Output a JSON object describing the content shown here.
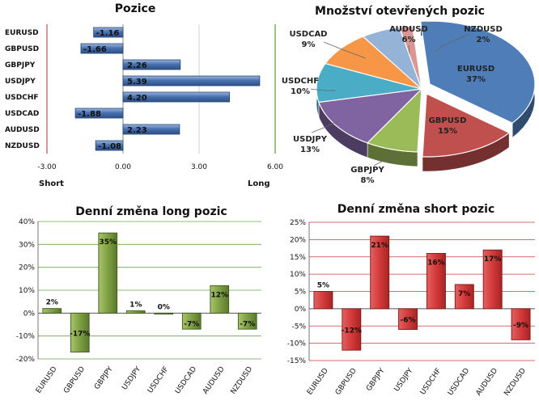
{
  "chart_data": [
    {
      "type": "bar",
      "orientation": "horizontal",
      "title": "Pozice",
      "categories": [
        "EURUSD",
        "GBPUSD",
        "GBPJPY",
        "USDJPY",
        "USDCHF",
        "USDCAD",
        "AUDUSD",
        "NZDUSD"
      ],
      "values": [
        -1.16,
        -1.66,
        2.26,
        5.39,
        4.2,
        -1.88,
        2.23,
        -1.08
      ],
      "value_labels": [
        "-1.16",
        "-1.66",
        "2.26",
        "5.39",
        "4.20",
        "-1.88",
        "2.23",
        "-1.08"
      ],
      "xlim": [
        -3,
        6
      ],
      "xticks": [
        "-3.00",
        "0.00",
        "3.00",
        "6.00"
      ],
      "left_label": "Short",
      "right_label": "Long",
      "bar_color": "#4a72b0",
      "left_line_color": "#c05050",
      "right_line_color": "#5a9a3a"
    },
    {
      "type": "pie",
      "title": "Množství otevřených pozic",
      "slices": [
        {
          "name": "EURUSD",
          "value": 37,
          "label": "37%",
          "color": "#4e7db8"
        },
        {
          "name": "GBPUSD",
          "value": 15,
          "label": "15%",
          "color": "#c0504d"
        },
        {
          "name": "GBPJPY",
          "value": 8,
          "label": "8%",
          "color": "#9bbb59"
        },
        {
          "name": "USDJPY",
          "value": 13,
          "label": "13%",
          "color": "#8064a2"
        },
        {
          "name": "USDCHF",
          "value": 10,
          "label": "10%",
          "color": "#4bacc6"
        },
        {
          "name": "USDCAD",
          "value": 9,
          "label": "9%",
          "color": "#f79646"
        },
        {
          "name": "AUDUSD",
          "value": 6,
          "label": "6%",
          "color": "#95b3d7"
        },
        {
          "name": "NZDUSD",
          "value": 2,
          "label": "2%",
          "color": "#d99694"
        }
      ]
    },
    {
      "type": "bar",
      "title": "Denní změna long pozic",
      "categories": [
        "EURUSD",
        "GBPUSD",
        "GBPJPY",
        "USDJPY",
        "USDCHF",
        "USDCAD",
        "AUDUSD",
        "NZDUSD"
      ],
      "values": [
        2,
        -17,
        35,
        1,
        0,
        -7,
        12,
        -7
      ],
      "value_labels": [
        "2%",
        "-17%",
        "35%",
        "1%",
        "0%",
        "-7%",
        "12%",
        "-7%"
      ],
      "ylim": [
        -20,
        40
      ],
      "yticks": [
        "-20%",
        "-10%",
        "0%",
        "10%",
        "20%",
        "30%",
        "40%"
      ],
      "bar_color": "#6e8f3a",
      "grid": true,
      "grid_color": "#6aa84f"
    },
    {
      "type": "bar",
      "title": "Denní změna short pozic",
      "categories": [
        "EURUSD",
        "GBPUSD",
        "GBPJPY",
        "USDJPY",
        "USDCHF",
        "USDCAD",
        "AUDUSD",
        "NZDUSD"
      ],
      "values": [
        5,
        -12,
        21,
        -6,
        16,
        7,
        17,
        -9
      ],
      "value_labels": [
        "5%",
        "-12%",
        "21%",
        "-6%",
        "16%",
        "7%",
        "17%",
        "-9%"
      ],
      "ylim": [
        -15,
        25
      ],
      "yticks": [
        "-15%",
        "-10%",
        "-5%",
        "0%",
        "5%",
        "10%",
        "15%",
        "20%",
        "25%"
      ],
      "bar_color": "#d04040",
      "grid": true,
      "grid_color": "#c04040"
    }
  ]
}
